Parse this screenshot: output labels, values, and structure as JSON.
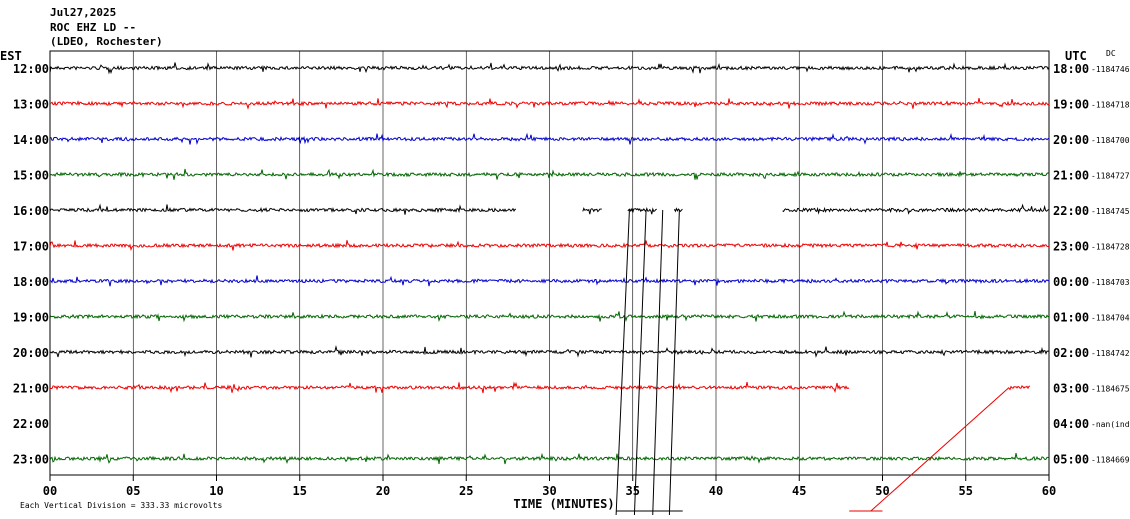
{
  "header": {
    "line1": "Jul27,2025",
    "line2": "ROC EHZ LD --",
    "line3": "(LDEO, Rochester)"
  },
  "left_zone": "EST",
  "right_zone": "UTC",
  "dc_label": "DC",
  "footer_note": "Each Vertical Division = 333.33 microvolts",
  "colors": [
    "#000000",
    "#ee0000",
    "#0000cc",
    "#006600"
  ],
  "chart_data": {
    "type": "line",
    "title": "",
    "xlabel": "TIME (MINUTES)",
    "x_ticks": [
      "00",
      "05",
      "10",
      "15",
      "20",
      "25",
      "30",
      "35",
      "40",
      "45",
      "50",
      "55",
      "60"
    ],
    "xlim": [
      0,
      60
    ],
    "grid": true,
    "rows": [
      {
        "est": "12:00",
        "utc": "18:00",
        "dc": "-1184746",
        "color": "#000000",
        "segments": [
          [
            0,
            60
          ]
        ]
      },
      {
        "est": "13:00",
        "utc": "19:00",
        "dc": "-1184718",
        "color": "#ee0000",
        "segments": [
          [
            0,
            60
          ]
        ]
      },
      {
        "est": "14:00",
        "utc": "20:00",
        "dc": "-1184700",
        "color": "#0000cc",
        "segments": [
          [
            0,
            60
          ]
        ]
      },
      {
        "est": "15:00",
        "utc": "21:00",
        "dc": "-1184727",
        "color": "#006600",
        "segments": [
          [
            0,
            60
          ]
        ]
      },
      {
        "est": "16:00",
        "utc": "22:00",
        "dc": "-1184745",
        "color": "#000000",
        "segments": [
          [
            0,
            28
          ],
          [
            32,
            33.2
          ],
          [
            34.7,
            36.5
          ],
          [
            37.5,
            38
          ],
          [
            44,
            60
          ]
        ]
      },
      {
        "est": "17:00",
        "utc": "23:00",
        "dc": "-1184728",
        "color": "#ee0000",
        "segments": [
          [
            0,
            60
          ]
        ]
      },
      {
        "est": "18:00",
        "utc": "00:00",
        "dc": "-1184703",
        "color": "#0000cc",
        "segments": [
          [
            0,
            60
          ]
        ]
      },
      {
        "est": "19:00",
        "utc": "01:00",
        "dc": "-1184704",
        "color": "#006600",
        "segments": [
          [
            0,
            60
          ]
        ]
      },
      {
        "est": "20:00",
        "utc": "02:00",
        "dc": "-1184742",
        "color": "#000000",
        "segments": [
          [
            0,
            60
          ]
        ]
      },
      {
        "est": "21:00",
        "utc": "03:00",
        "dc": "-1184675",
        "color": "#ee0000",
        "segments": [
          [
            0,
            48
          ],
          [
            57.6,
            58.9
          ]
        ]
      },
      {
        "est": "22:00",
        "utc": "04:00",
        "dc": "-nan(ind",
        "color": "#0000cc",
        "segments": []
      },
      {
        "est": "23:00",
        "utc": "05:00",
        "dc": "-1184669",
        "color": "#006600",
        "segments": [
          [
            0,
            60
          ]
        ]
      }
    ]
  }
}
